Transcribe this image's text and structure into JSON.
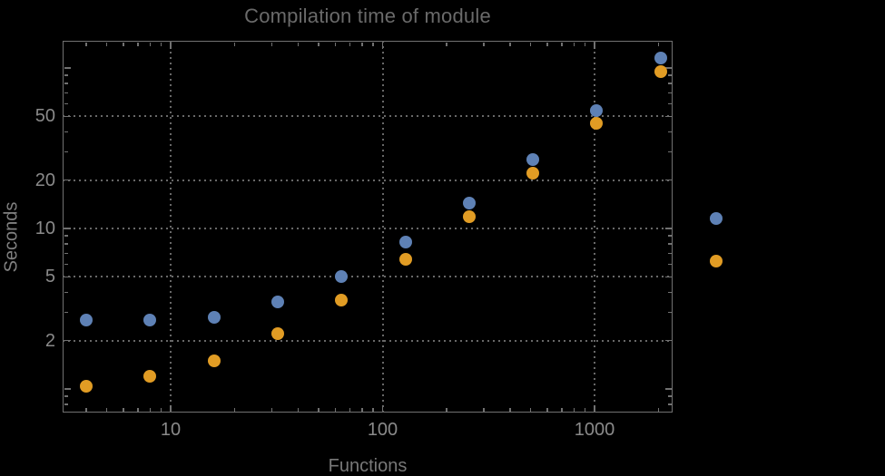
{
  "chart_data": {
    "type": "scatter",
    "title": "Compilation time of module",
    "xlabel": "Functions",
    "ylabel": "Seconds",
    "x_scale": "log",
    "y_scale": "log",
    "xlim": [
      3.1,
      2320
    ],
    "ylim": [
      0.71,
      148
    ],
    "grid": true,
    "x": [
      4,
      8,
      16,
      32,
      64,
      128,
      256,
      512,
      1024,
      2048
    ],
    "series": [
      {
        "name": "blue",
        "color": "#5E81B5",
        "values": [
          2.7,
          2.7,
          2.8,
          3.5,
          5.0,
          8.2,
          14.4,
          26.8,
          54,
          116
        ]
      },
      {
        "name": "orange",
        "color": "#E19C24",
        "values": [
          1.04,
          1.2,
          1.5,
          2.2,
          3.6,
          6.4,
          11.8,
          22,
          45,
          95
        ]
      }
    ],
    "x_ticks": [
      10,
      100,
      1000
    ],
    "y_ticks": [
      2,
      5,
      10,
      20,
      50
    ],
    "x_minor_ticks": [
      4,
      5,
      6,
      7,
      8,
      9,
      20,
      30,
      40,
      50,
      60,
      70,
      80,
      90,
      200,
      300,
      400,
      500,
      600,
      700,
      800,
      900,
      2000
    ],
    "y_minor_ticks": [
      0.8,
      0.9,
      3,
      4,
      6,
      7,
      8,
      9,
      30,
      40,
      60,
      70,
      80,
      90
    ],
    "y_decade_ticks": [
      1,
      100
    ],
    "legend_position": "right-of-plot",
    "legend_markers": [
      {
        "series": "blue",
        "color": "#5E81B5"
      },
      {
        "series": "orange",
        "color": "#E19C24"
      }
    ]
  }
}
